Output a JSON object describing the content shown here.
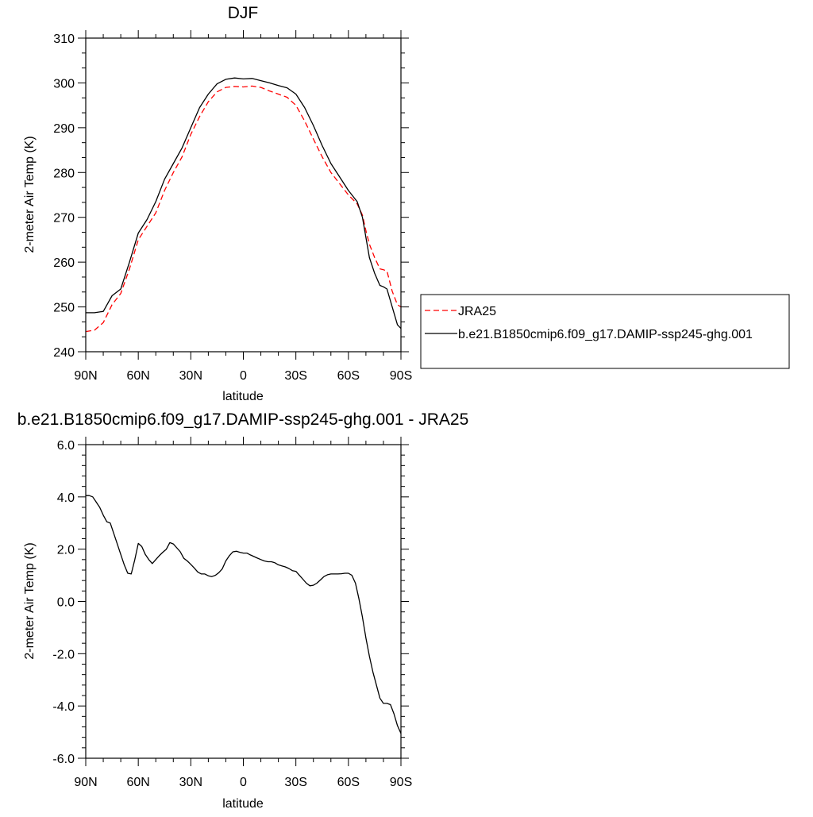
{
  "chart_data": [
    {
      "type": "line",
      "title": "DJF",
      "xlabel": "latitude",
      "ylabel": "2-meter Air Temp (K)",
      "xlim": [
        90,
        -90
      ],
      "ylim": [
        240,
        310
      ],
      "xticks": [
        {
          "value": 90,
          "label": "90N"
        },
        {
          "value": 60,
          "label": "60N"
        },
        {
          "value": 30,
          "label": "30N"
        },
        {
          "value": 0,
          "label": "0"
        },
        {
          "value": -30,
          "label": "30S"
        },
        {
          "value": -60,
          "label": "60S"
        },
        {
          "value": -90,
          "label": "90S"
        }
      ],
      "yticks": [
        {
          "value": 240,
          "label": "240"
        },
        {
          "value": 250,
          "label": "250"
        },
        {
          "value": 260,
          "label": "260"
        },
        {
          "value": 270,
          "label": "270"
        },
        {
          "value": 280,
          "label": "280"
        },
        {
          "value": 290,
          "label": "290"
        },
        {
          "value": 300,
          "label": "300"
        },
        {
          "value": 310,
          "label": "310"
        }
      ],
      "legend": {
        "placement": "right",
        "entries": [
          {
            "label": "JRA25",
            "color": "#ff0000",
            "dash": "dashed"
          },
          {
            "label": "b.e21.B1850cmip6.f09_g17.DAMIP-ssp245-ghg.001",
            "color": "#000000",
            "dash": "solid"
          }
        ]
      },
      "series": [
        {
          "name": "JRA25",
          "color": "#ff0000",
          "dash": "dashed",
          "x": [
            90,
            85,
            80,
            75,
            70,
            65,
            60,
            55,
            50,
            45,
            40,
            35,
            30,
            25,
            20,
            15,
            10,
            5,
            0,
            -5,
            -10,
            -15,
            -20,
            -25,
            -30,
            -35,
            -40,
            -45,
            -50,
            -55,
            -60,
            -65,
            -68,
            -70,
            -72,
            -75,
            -78,
            -80,
            -82,
            -85,
            -88,
            -90
          ],
          "y": [
            244.5,
            244.8,
            246.5,
            250.5,
            253.0,
            258.5,
            265.0,
            268.0,
            271.0,
            276.0,
            280.0,
            283.5,
            288.5,
            292.5,
            295.8,
            298.0,
            299.0,
            299.2,
            299.1,
            299.3,
            299.0,
            298.2,
            297.5,
            296.8,
            295.0,
            291.5,
            287.5,
            283.5,
            280.0,
            277.5,
            275.0,
            273.0,
            270.5,
            267.0,
            264.0,
            261.0,
            258.5,
            258.3,
            258.0,
            253.5,
            250.5,
            250.0
          ]
        },
        {
          "name": "b.e21.B1850cmip6.f09_g17.DAMIP-ssp245-ghg.001",
          "color": "#000000",
          "dash": "solid",
          "x": [
            90,
            85,
            80,
            75,
            70,
            65,
            60,
            55,
            50,
            45,
            40,
            35,
            30,
            25,
            20,
            15,
            10,
            5,
            0,
            -5,
            -10,
            -15,
            -20,
            -25,
            -30,
            -35,
            -40,
            -45,
            -50,
            -55,
            -60,
            -65,
            -68,
            -70,
            -72,
            -75,
            -78,
            -80,
            -82,
            -85,
            -88,
            -90
          ],
          "y": [
            248.7,
            248.7,
            249.0,
            252.5,
            254.0,
            260.0,
            266.5,
            269.5,
            273.5,
            278.5,
            282.0,
            285.5,
            290.0,
            294.5,
            297.5,
            299.8,
            300.8,
            301.1,
            300.9,
            301.0,
            300.5,
            300.0,
            299.4,
            298.9,
            297.5,
            294.5,
            290.5,
            286.0,
            282.0,
            279.0,
            276.0,
            273.5,
            270.0,
            265.5,
            261.0,
            257.5,
            254.8,
            254.5,
            254.0,
            250.0,
            246.0,
            245.2
          ]
        }
      ]
    },
    {
      "type": "line",
      "title": "b.e21.B1850cmip6.f09_g17.DAMIP-ssp245-ghg.001 - JRA25",
      "xlabel": "latitude",
      "ylabel": "2-meter Air Temp (K)",
      "xlim": [
        90,
        -90
      ],
      "ylim": [
        -6,
        6
      ],
      "xticks": [
        {
          "value": 90,
          "label": "90N"
        },
        {
          "value": 60,
          "label": "60N"
        },
        {
          "value": 30,
          "label": "30N"
        },
        {
          "value": 0,
          "label": "0"
        },
        {
          "value": -30,
          "label": "30S"
        },
        {
          "value": -60,
          "label": "60S"
        },
        {
          "value": -90,
          "label": "90S"
        }
      ],
      "yticks": [
        {
          "value": -6,
          "label": "-6.0"
        },
        {
          "value": -4,
          "label": "-4.0"
        },
        {
          "value": -2,
          "label": "-2.0"
        },
        {
          "value": 0,
          "label": "0.0"
        },
        {
          "value": 2,
          "label": "2.0"
        },
        {
          "value": 4,
          "label": "4.0"
        },
        {
          "value": 6,
          "label": "6.0"
        }
      ],
      "series": [
        {
          "color": "#000000",
          "dash": "solid",
          "x": [
            90,
            88,
            86,
            84,
            82,
            80,
            78,
            76,
            74,
            72,
            70,
            68,
            66,
            64,
            62,
            60,
            58,
            56,
            54,
            52,
            50,
            48,
            46,
            44,
            42,
            40,
            38,
            36,
            34,
            32,
            30,
            28,
            26,
            24,
            22,
            20,
            18,
            16,
            14,
            12,
            10,
            8,
            6,
            4,
            2,
            0,
            -2,
            -4,
            -6,
            -8,
            -10,
            -12,
            -14,
            -16,
            -18,
            -20,
            -22,
            -24,
            -26,
            -28,
            -30,
            -32,
            -34,
            -36,
            -38,
            -40,
            -42,
            -44,
            -46,
            -48,
            -50,
            -52,
            -54,
            -56,
            -58,
            -60,
            -62,
            -64,
            -66,
            -68,
            -70,
            -72,
            -74,
            -76,
            -78,
            -80,
            -82,
            -84,
            -86,
            -88,
            -90
          ],
          "y": [
            4.05,
            4.05,
            4.0,
            3.8,
            3.6,
            3.3,
            3.05,
            3.0,
            2.6,
            2.2,
            1.8,
            1.4,
            1.08,
            1.05,
            1.6,
            2.22,
            2.1,
            1.8,
            1.6,
            1.45,
            1.6,
            1.75,
            1.88,
            2.0,
            2.25,
            2.2,
            2.05,
            1.9,
            1.65,
            1.55,
            1.42,
            1.28,
            1.12,
            1.05,
            1.05,
            0.98,
            0.95,
            1.0,
            1.1,
            1.25,
            1.55,
            1.75,
            1.9,
            1.92,
            1.88,
            1.85,
            1.85,
            1.78,
            1.72,
            1.66,
            1.6,
            1.55,
            1.52,
            1.52,
            1.48,
            1.4,
            1.36,
            1.32,
            1.26,
            1.18,
            1.15,
            1.0,
            0.85,
            0.7,
            0.6,
            0.62,
            0.7,
            0.82,
            0.95,
            1.02,
            1.05,
            1.05,
            1.05,
            1.06,
            1.08,
            1.08,
            1.0,
            0.7,
            0.1,
            -0.6,
            -1.4,
            -2.1,
            -2.7,
            -3.2,
            -3.7,
            -3.9,
            -3.9,
            -3.95,
            -4.3,
            -4.75,
            -5.05
          ]
        }
      ]
    }
  ]
}
